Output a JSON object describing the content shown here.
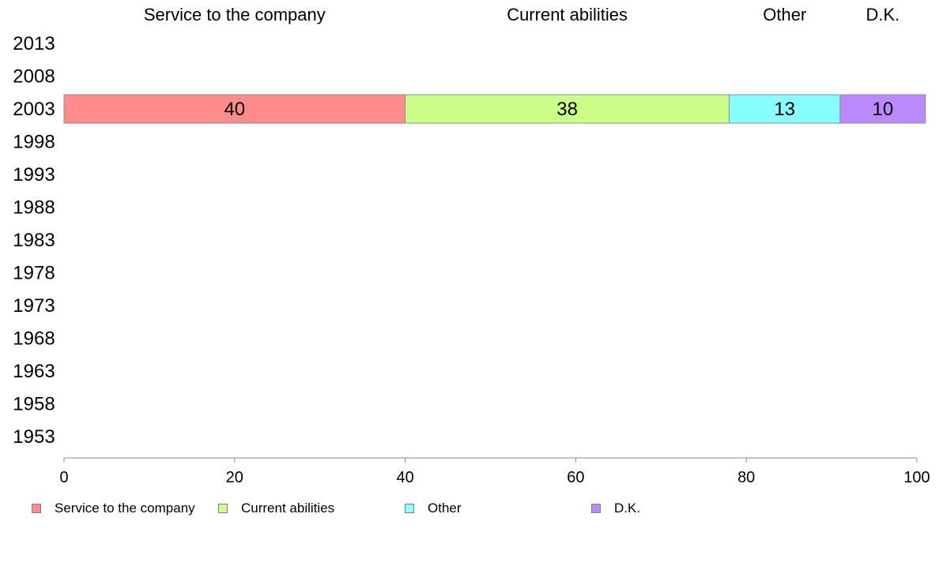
{
  "chart_data": {
    "type": "bar",
    "orientation": "horizontal",
    "stacked": true,
    "categories": [
      "2013",
      "2008",
      "2003",
      "1998",
      "1993",
      "1988",
      "1983",
      "1978",
      "1973",
      "1968",
      "1963",
      "1958",
      "1953"
    ],
    "series": [
      {
        "name": "Service to the company",
        "color": "#ff8b8b",
        "values": [
          null,
          null,
          40,
          null,
          null,
          null,
          null,
          null,
          null,
          null,
          null,
          null,
          null
        ]
      },
      {
        "name": "Current abilities",
        "color": "#ccff88",
        "values": [
          null,
          null,
          38,
          null,
          null,
          null,
          null,
          null,
          null,
          null,
          null,
          null,
          null
        ]
      },
      {
        "name": "Other",
        "color": "#88ffff",
        "values": [
          null,
          null,
          13,
          null,
          null,
          null,
          null,
          null,
          null,
          null,
          null,
          null,
          null
        ]
      },
      {
        "name": "D.K.",
        "color": "#bb88ff",
        "values": [
          null,
          null,
          10,
          null,
          null,
          null,
          null,
          null,
          null,
          null,
          null,
          null,
          null
        ]
      }
    ],
    "xlim": [
      0,
      100
    ],
    "xticks": [
      "0",
      "20",
      "40",
      "60",
      "80",
      "100"
    ],
    "grid": false,
    "legend_position": "bottom",
    "column_headers": true
  }
}
